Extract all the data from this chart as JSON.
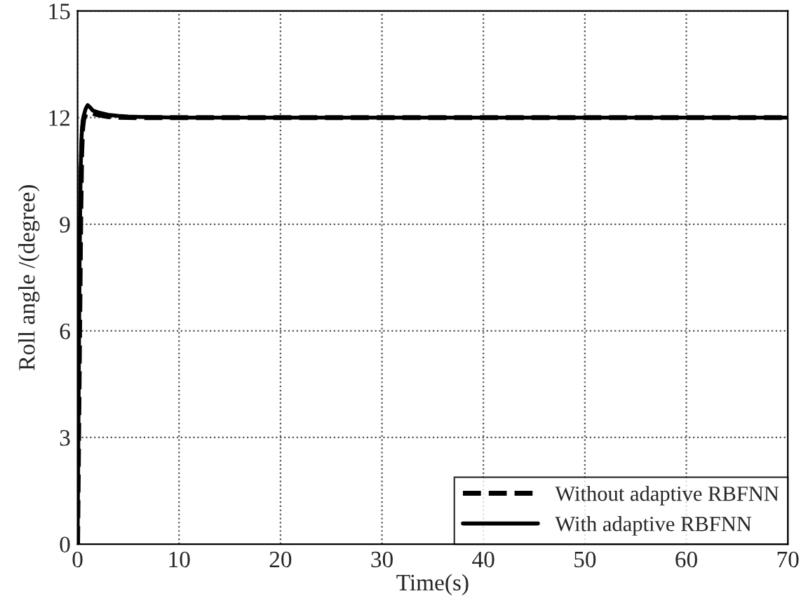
{
  "chart_data": {
    "type": "line",
    "xlabel": "Time(s)",
    "ylabel": "Roll angle /(degree)",
    "xlim": [
      0,
      70
    ],
    "ylim": [
      0,
      15
    ],
    "xticks": [
      0,
      10,
      20,
      30,
      40,
      50,
      60,
      70
    ],
    "yticks": [
      0,
      3,
      6,
      9,
      12,
      15
    ],
    "grid": true,
    "legend": "bottom right",
    "series": [
      {
        "name": "Without adaptive RBFNN",
        "color": "#000000",
        "line_style": "dashed",
        "x": [
          0,
          0.1,
          0.2,
          0.3,
          0.4,
          0.5,
          0.6,
          0.8,
          1.0,
          1.5,
          2,
          3,
          4,
          6,
          10,
          20,
          30,
          40,
          50,
          60,
          70
        ],
        "values": [
          0,
          3,
          6,
          9,
          11,
          11.7,
          11.95,
          12.1,
          12.15,
          12.12,
          12.08,
          12.03,
          12.01,
          12,
          12,
          12,
          12,
          12,
          12,
          12,
          12
        ]
      },
      {
        "name": "With adaptive RBFNN",
        "color": "#000000",
        "line_style": "solid",
        "x": [
          0,
          0.1,
          0.2,
          0.3,
          0.4,
          0.5,
          0.6,
          0.8,
          1.0,
          1.2,
          1.5,
          2,
          3,
          4,
          5,
          6,
          8,
          10,
          20,
          30,
          40,
          50,
          60,
          70
        ],
        "values": [
          0,
          4,
          8,
          10.5,
          11.5,
          11.9,
          12.05,
          12.25,
          12.35,
          12.3,
          12.2,
          12.15,
          12.08,
          12.05,
          12.03,
          12.02,
          12.01,
          12,
          12,
          12,
          12,
          12,
          12,
          12
        ]
      }
    ]
  }
}
